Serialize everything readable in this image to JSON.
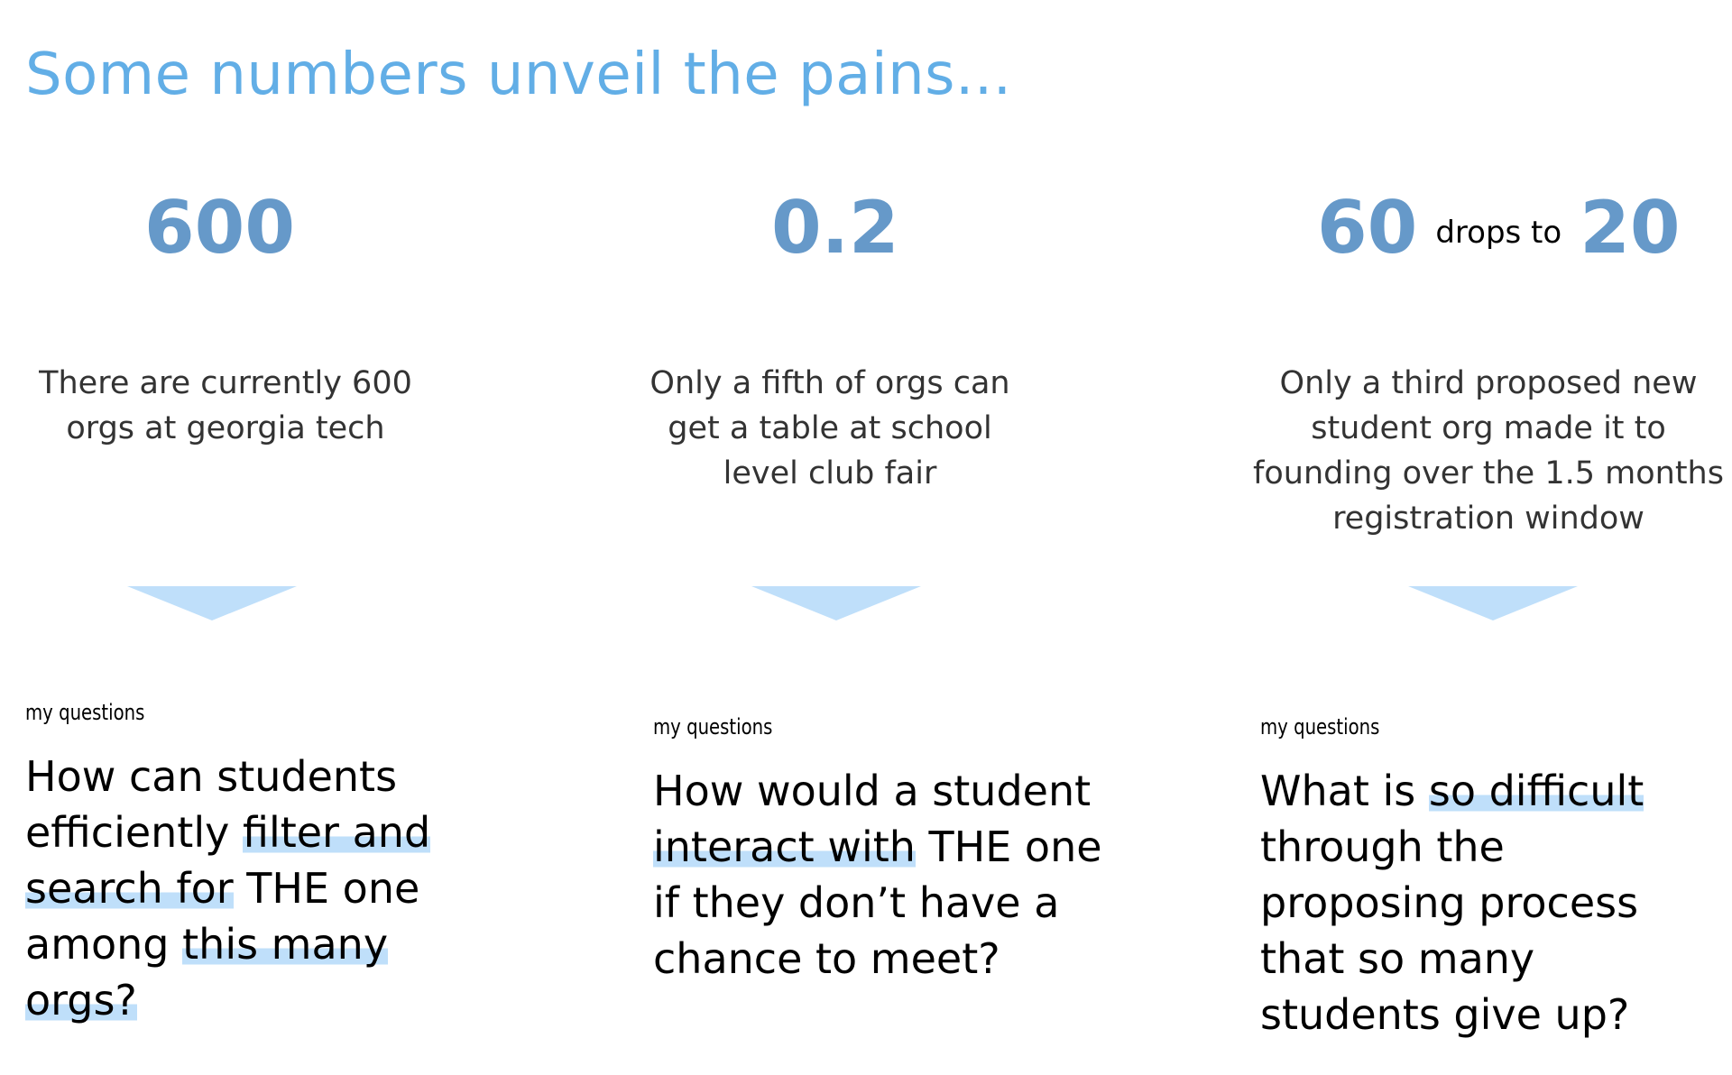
{
  "title": "Some numbers unveil the pains...",
  "columns": [
    {
      "stat": "600",
      "description": "There are currently 600 orgs at georgia tech",
      "label": "my questions",
      "question_parts": [
        "How can students efficiently ",
        "filter and search for",
        " THE one among ",
        "this many orgs?"
      ]
    },
    {
      "stat": "0.2",
      "description": "Only a fifth of orgs can get a table at school level club fair",
      "label": "my questions",
      "question_parts": [
        "How would a student ",
        "interact with",
        " THE one if they don’t have a chance to meet?"
      ]
    },
    {
      "stat_from": "60",
      "stat_connector": "drops to",
      "stat_to": "20",
      "description": "Only a third proposed new student org made it to founding over the 1.5 months registration window",
      "label": "my questions",
      "question_parts": [
        "What is ",
        "so difficult",
        " through the proposing process that so many students give up?"
      ]
    }
  ],
  "colors": {
    "title": "#62aee6",
    "stat": "#6699c9",
    "highlight": "#bfdffa",
    "arrow": "#bfdffa"
  }
}
